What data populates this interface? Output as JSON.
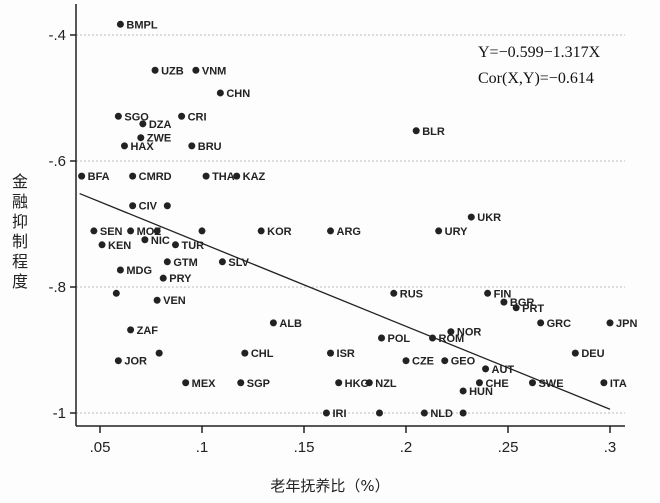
{
  "chart_data": {
    "type": "scatter",
    "xlabel": "老年抚养比（%）",
    "ylabel": "金融抑制程度",
    "xlim": [
      0.037,
      0.305
    ],
    "ylim": [
      -1.02,
      -0.38
    ],
    "xticks": [
      ".05",
      ".1",
      ".15",
      ".2",
      ".25",
      ".3"
    ],
    "xtick_values": [
      0.05,
      0.1,
      0.15,
      0.2,
      0.25,
      0.3
    ],
    "yticks": [
      "-.4",
      "-.6",
      "-.8",
      "-1"
    ],
    "ytick_values": [
      -0.4,
      -0.6,
      -0.8,
      -1.0
    ],
    "grid": "horizontal dotted",
    "annotations": [
      "Y=−0.599−1.317X",
      "Cor(X,Y)=−0.614"
    ],
    "fit_line": {
      "intercept": -0.599,
      "slope": -1.317,
      "x_range": [
        0.04,
        0.3
      ]
    },
    "points": [
      {
        "label": "BMPL",
        "x": 0.06,
        "y": -0.383
      },
      {
        "label": "UZB",
        "x": 0.077,
        "y": -0.456
      },
      {
        "label": "VNM",
        "x": 0.097,
        "y": -0.456
      },
      {
        "label": "CHN",
        "x": 0.109,
        "y": -0.492
      },
      {
        "label": "SGO",
        "x": 0.059,
        "y": -0.529
      },
      {
        "label": "DZA",
        "x": 0.071,
        "y": -0.541
      },
      {
        "label": "CRI",
        "x": 0.09,
        "y": -0.529
      },
      {
        "label": "ZWE",
        "x": 0.07,
        "y": -0.563
      },
      {
        "label": "HAX",
        "x": 0.062,
        "y": -0.576
      },
      {
        "label": "BRU",
        "x": 0.095,
        "y": -0.576
      },
      {
        "label": "BFA",
        "x": 0.041,
        "y": -0.624
      },
      {
        "label": "CMRD",
        "x": 0.066,
        "y": -0.624
      },
      {
        "label": "THA",
        "x": 0.102,
        "y": -0.624
      },
      {
        "label": "KAZ",
        "x": 0.117,
        "y": -0.624
      },
      {
        "label": "BLR",
        "x": 0.205,
        "y": -0.552
      },
      {
        "label": "CIV",
        "x": 0.066,
        "y": -0.671
      },
      {
        "label": "",
        "x": 0.083,
        "y": -0.671
      },
      {
        "label": "SEN",
        "x": 0.047,
        "y": -0.711
      },
      {
        "label": "MOZ",
        "x": 0.065,
        "y": -0.711
      },
      {
        "label": "",
        "x": 0.078,
        "y": -0.711
      },
      {
        "label": "",
        "x": 0.1,
        "y": -0.711
      },
      {
        "label": "KOR",
        "x": 0.129,
        "y": -0.711
      },
      {
        "label": "ARG",
        "x": 0.163,
        "y": -0.711
      },
      {
        "label": "URY",
        "x": 0.216,
        "y": -0.711
      },
      {
        "label": "UKR",
        "x": 0.232,
        "y": -0.689
      },
      {
        "label": "KEN",
        "x": 0.051,
        "y": -0.733
      },
      {
        "label": "NIC",
        "x": 0.072,
        "y": -0.725
      },
      {
        "label": "TUR",
        "x": 0.087,
        "y": -0.733
      },
      {
        "label": "GTM",
        "x": 0.083,
        "y": -0.76
      },
      {
        "label": "SLV",
        "x": 0.11,
        "y": -0.76
      },
      {
        "label": "MDG",
        "x": 0.06,
        "y": -0.773
      },
      {
        "label": "PRY",
        "x": 0.081,
        "y": -0.786
      },
      {
        "label": "",
        "x": 0.058,
        "y": -0.81
      },
      {
        "label": "VEN",
        "x": 0.078,
        "y": -0.821
      },
      {
        "label": "RUS",
        "x": 0.194,
        "y": -0.81
      },
      {
        "label": "FIN",
        "x": 0.24,
        "y": -0.81
      },
      {
        "label": "BGR",
        "x": 0.248,
        "y": -0.824
      },
      {
        "label": "PRT",
        "x": 0.254,
        "y": -0.833
      },
      {
        "label": "ALB",
        "x": 0.135,
        "y": -0.857
      },
      {
        "label": "ZAF",
        "x": 0.065,
        "y": -0.868
      },
      {
        "label": "GRC",
        "x": 0.266,
        "y": -0.857
      },
      {
        "label": "JPN",
        "x": 0.3,
        "y": -0.857
      },
      {
        "label": "NOR",
        "x": 0.222,
        "y": -0.871
      },
      {
        "label": "POL",
        "x": 0.188,
        "y": -0.881
      },
      {
        "label": "ROM",
        "x": 0.213,
        "y": -0.881
      },
      {
        "label": "JOR",
        "x": 0.059,
        "y": -0.917
      },
      {
        "label": "",
        "x": 0.079,
        "y": -0.905
      },
      {
        "label": "CHL",
        "x": 0.121,
        "y": -0.905
      },
      {
        "label": "ISR",
        "x": 0.163,
        "y": -0.905
      },
      {
        "label": "DEU",
        "x": 0.283,
        "y": -0.905
      },
      {
        "label": "CZE",
        "x": 0.2,
        "y": -0.917
      },
      {
        "label": "GEO",
        "x": 0.219,
        "y": -0.917
      },
      {
        "label": "AUT",
        "x": 0.239,
        "y": -0.93
      },
      {
        "label": "MEX",
        "x": 0.092,
        "y": -0.952
      },
      {
        "label": "SGP",
        "x": 0.119,
        "y": -0.952
      },
      {
        "label": "HKG",
        "x": 0.167,
        "y": -0.952
      },
      {
        "label": "NZL",
        "x": 0.182,
        "y": -0.952
      },
      {
        "label": "CHE",
        "x": 0.236,
        "y": -0.952
      },
      {
        "label": "HUN",
        "x": 0.228,
        "y": -0.965
      },
      {
        "label": "SWE",
        "x": 0.262,
        "y": -0.952
      },
      {
        "label": "ITA",
        "x": 0.297,
        "y": -0.952
      },
      {
        "label": "IRI",
        "x": 0.161,
        "y": -1.0
      },
      {
        "label": "",
        "x": 0.187,
        "y": -1.0
      },
      {
        "label": "NLD",
        "x": 0.209,
        "y": -1.0
      },
      {
        "label": "",
        "x": 0.228,
        "y": -1.0
      }
    ]
  }
}
